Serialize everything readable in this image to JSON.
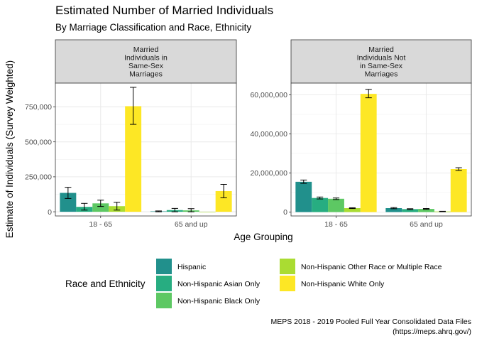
{
  "title": "Estimated Number of Married Individuals",
  "subtitle": "By Marriage Classification and Race, Ethnicity",
  "caption": [
    "MEPS 2018 - 2019 Pooled Full Year Consolidated Data Files",
    "(https://meps.ahrq.gov/)"
  ],
  "chart_data": [
    {
      "type": "bar",
      "panel": [
        "Married",
        "Individuals in",
        "Same-Sex",
        "Marriages"
      ],
      "categories": [
        "18 - 65",
        "65 and up"
      ],
      "xlabel": "Age Grouping",
      "ylabel": "Estimate of Individuals (Survey Weighted)",
      "ylim": [
        -30000,
        920000
      ],
      "yticks": [
        0,
        250000,
        500000,
        750000
      ],
      "ytick_labels": [
        "0",
        "250,000",
        "500,000",
        "750,000"
      ],
      "grid": true,
      "series": [
        {
          "name": "Hispanic",
          "values": [
            135000,
            3000
          ],
          "error": [
            [
              95000,
              175000
            ],
            [
              0,
              6000
            ]
          ]
        },
        {
          "name": "Non-Hispanic Asian Only",
          "values": [
            35000,
            12000
          ],
          "error": [
            [
              12000,
              60000
            ],
            [
              0,
              24000
            ]
          ]
        },
        {
          "name": "Non-Hispanic Black Only",
          "values": [
            60000,
            10000
          ],
          "error": [
            [
              38000,
              83000
            ],
            [
              0,
              22000
            ]
          ]
        },
        {
          "name": "Non-Hispanic Other Race or Multiple Race",
          "values": [
            40000,
            0
          ],
          "error": [
            [
              12000,
              68000
            ],
            null
          ]
        },
        {
          "name": "Non-Hispanic White Only",
          "values": [
            755000,
            148000
          ],
          "error": [
            [
              625000,
              890000
            ],
            [
              100000,
              196000
            ]
          ]
        }
      ]
    },
    {
      "type": "bar",
      "panel": [
        "Married",
        "Individuals Not",
        "in Same-Sex",
        "Marriages"
      ],
      "categories": [
        "18 - 65",
        "65 and up"
      ],
      "xlabel": "Age Grouping",
      "ylabel": "Estimate of Individuals (Survey Weighted)",
      "ylim": [
        -2000000,
        66000000
      ],
      "yticks": [
        0,
        20000000,
        40000000,
        60000000
      ],
      "ytick_labels": [
        "0",
        "20,000,000",
        "40,000,000",
        "60,000,000"
      ],
      "grid": true,
      "series": [
        {
          "name": "Hispanic",
          "values": [
            15500000,
            2000000
          ],
          "error": [
            [
              14700000,
              16400000
            ],
            [
              1700000,
              2300000
            ]
          ]
        },
        {
          "name": "Non-Hispanic Asian Only",
          "values": [
            7200000,
            1500000
          ],
          "error": [
            [
              6700000,
              7700000
            ],
            [
              1300000,
              1700000
            ]
          ]
        },
        {
          "name": "Non-Hispanic Black Only",
          "values": [
            6800000,
            1600000
          ],
          "error": [
            [
              6400000,
              7200000
            ],
            [
              1400000,
              1800000
            ]
          ]
        },
        {
          "name": "Non-Hispanic Other Race or Multiple Race",
          "values": [
            2000000,
            300000
          ],
          "error": [
            [
              1800000,
              2200000
            ],
            [
              200000,
              400000
            ]
          ]
        },
        {
          "name": "Non-Hispanic White Only",
          "values": [
            60500000,
            22000000
          ],
          "error": [
            [
              58500000,
              62800000
            ],
            [
              21300000,
              22700000
            ]
          ]
        }
      ]
    }
  ],
  "legend": {
    "title": "Race and Ethnicity",
    "position": "bottom",
    "items": [
      {
        "label": "Hispanic",
        "color": "#21908c"
      },
      {
        "label": "Non-Hispanic Asian Only",
        "color": "#27ad81"
      },
      {
        "label": "Non-Hispanic Black Only",
        "color": "#5dc863"
      },
      {
        "label": "Non-Hispanic Other Race or Multiple Race",
        "color": "#aadc32"
      },
      {
        "label": "Non-Hispanic White Only",
        "color": "#fde725"
      }
    ]
  }
}
